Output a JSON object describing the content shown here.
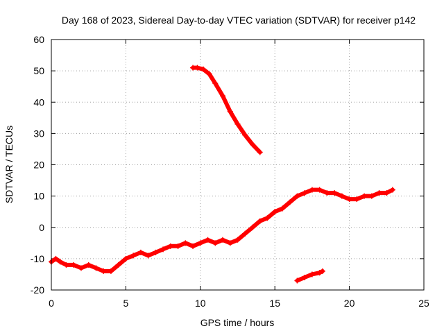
{
  "chart_data": {
    "type": "scatter",
    "title": "Day 168 of 2023, Sidereal Day-to-day VTEC variation (SDTVAR) for receiver p142",
    "xlabel": "GPS time / hours",
    "ylabel": "SDTVAR / TECUs",
    "xlim": [
      0,
      25
    ],
    "ylim": [
      -20,
      60
    ],
    "xticks": [
      0,
      5,
      10,
      15,
      20,
      25
    ],
    "yticks": [
      -20,
      -10,
      0,
      10,
      20,
      30,
      40,
      50,
      60
    ],
    "grid": true,
    "marker_color": "#ff0000",
    "series": [
      {
        "name": "main trace",
        "x": [
          0.0,
          0.3,
          0.6,
          1.0,
          1.5,
          2.0,
          2.5,
          3.0,
          3.5,
          4.0,
          4.5,
          5.0,
          5.5,
          6.0,
          6.5,
          7.0,
          7.5,
          8.0,
          8.5,
          9.0,
          9.5,
          10.0,
          10.5,
          11.0,
          11.5,
          12.0,
          12.5,
          13.0,
          13.5,
          14.0,
          14.5,
          15.0,
          15.5,
          16.0,
          16.5,
          17.0,
          17.5,
          18.0,
          18.5,
          19.0,
          19.5,
          20.0,
          20.5,
          21.0,
          21.5,
          22.0,
          22.5,
          22.9
        ],
        "y": [
          -11,
          -10,
          -11,
          -12,
          -12,
          -13,
          -12,
          -13,
          -14,
          -14,
          -12,
          -10,
          -9,
          -8,
          -9,
          -8,
          -7,
          -6,
          -6,
          -5,
          -6,
          -5,
          -4,
          -5,
          -4,
          -5,
          -4,
          -2,
          0,
          2,
          3,
          5,
          6,
          8,
          10,
          11,
          12,
          12,
          11,
          11,
          10,
          9,
          9,
          10,
          10,
          11,
          11,
          12
        ]
      },
      {
        "name": "upper segment",
        "x": [
          9.5,
          9.8,
          10.2,
          10.6,
          11.0,
          11.5,
          12.0,
          12.5,
          13.0,
          13.5,
          14.0
        ],
        "y": [
          51,
          51,
          50.5,
          49,
          46,
          42,
          37,
          33,
          29.5,
          26.5,
          24
        ]
      },
      {
        "name": "lower segment",
        "x": [
          16.5,
          17.0,
          17.5,
          18.0,
          18.2
        ],
        "y": [
          -17,
          -16,
          -15,
          -14.5,
          -14
        ]
      }
    ]
  }
}
